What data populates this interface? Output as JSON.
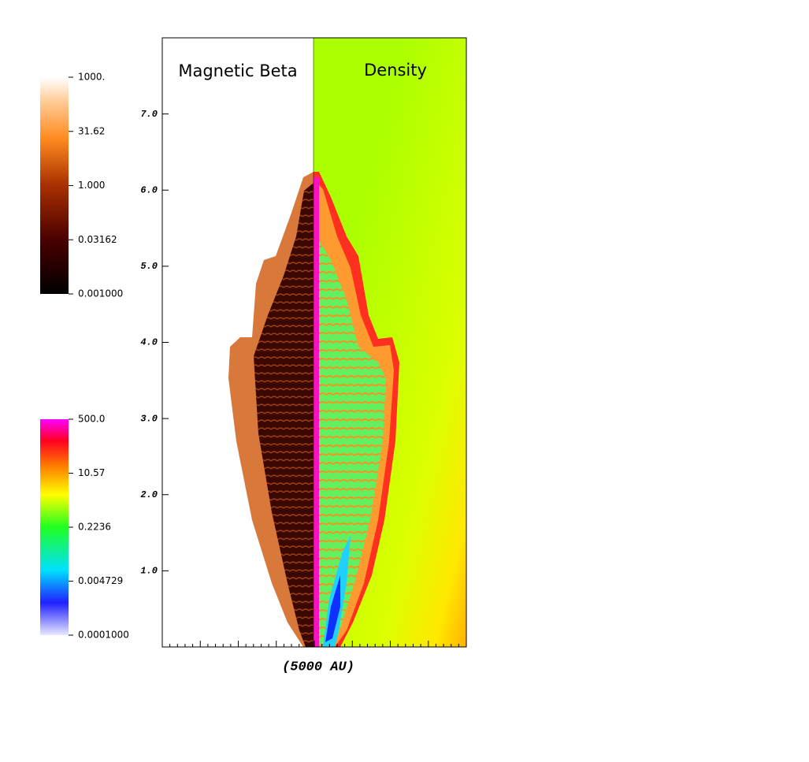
{
  "plot": {
    "title_left": "Magnetic Beta",
    "title_right": "Density",
    "xlabel": "(5000 AU)",
    "ylim": [
      0,
      8
    ],
    "yticks": [
      {
        "value": 1,
        "label": "1.0"
      },
      {
        "value": 2,
        "label": "2.0"
      },
      {
        "value": 3,
        "label": "3.0"
      },
      {
        "value": 4,
        "label": "4.0"
      },
      {
        "value": 5,
        "label": "5.0"
      },
      {
        "value": 6,
        "label": "6.0"
      },
      {
        "value": 7,
        "label": "7.0"
      }
    ]
  },
  "colorbars": [
    {
      "name": "beta",
      "log": true,
      "range": [
        0.001,
        1000
      ],
      "ticks": [
        {
          "value": 1000,
          "label": "1000."
        },
        {
          "value": 31.62,
          "label": "31.62"
        },
        {
          "value": 1,
          "label": "1.000"
        },
        {
          "value": 0.03162,
          "label": "0.03162"
        },
        {
          "value": 0.001,
          "label": "0.001000"
        }
      ]
    },
    {
      "name": "density",
      "log": true,
      "range": [
        0.0001,
        500
      ],
      "ticks": [
        {
          "value": 500,
          "label": "500.0"
        },
        {
          "value": 10.57,
          "label": "10.57"
        },
        {
          "value": 0.2236,
          "label": "0.2236"
        },
        {
          "value": 0.004729,
          "label": "0.004729"
        },
        {
          "value": 0.0001,
          "label": "0.0001000"
        }
      ]
    }
  ]
}
